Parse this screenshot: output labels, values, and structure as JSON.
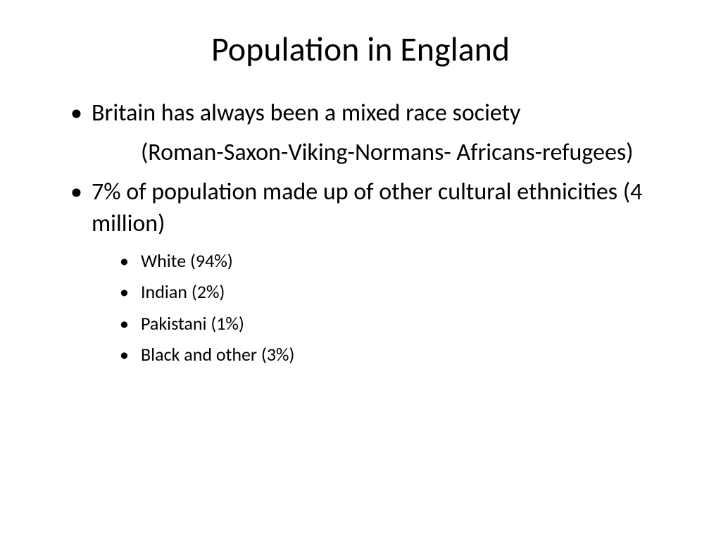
{
  "slide": {
    "title": "Population in England",
    "bullets": {
      "item1": "Britain has always been a mixed race society",
      "item1_sub": "(Roman-Saxon-Viking-Normans- Africans-refugees)",
      "item2": "7% of population made up of other cultural ethnicities (4 million)",
      "sub_items": {
        "s1": "White (94%)",
        "s2": "Indian (2%)",
        "s3": "Pakistani (1%)",
        "s4": "Black and other (3%)"
      }
    },
    "styling": {
      "background_color": "#ffffff",
      "text_color": "#000000",
      "title_fontsize": 48,
      "body_fontsize": 34,
      "sub_fontsize": 26,
      "font_family": "Calibri"
    }
  }
}
